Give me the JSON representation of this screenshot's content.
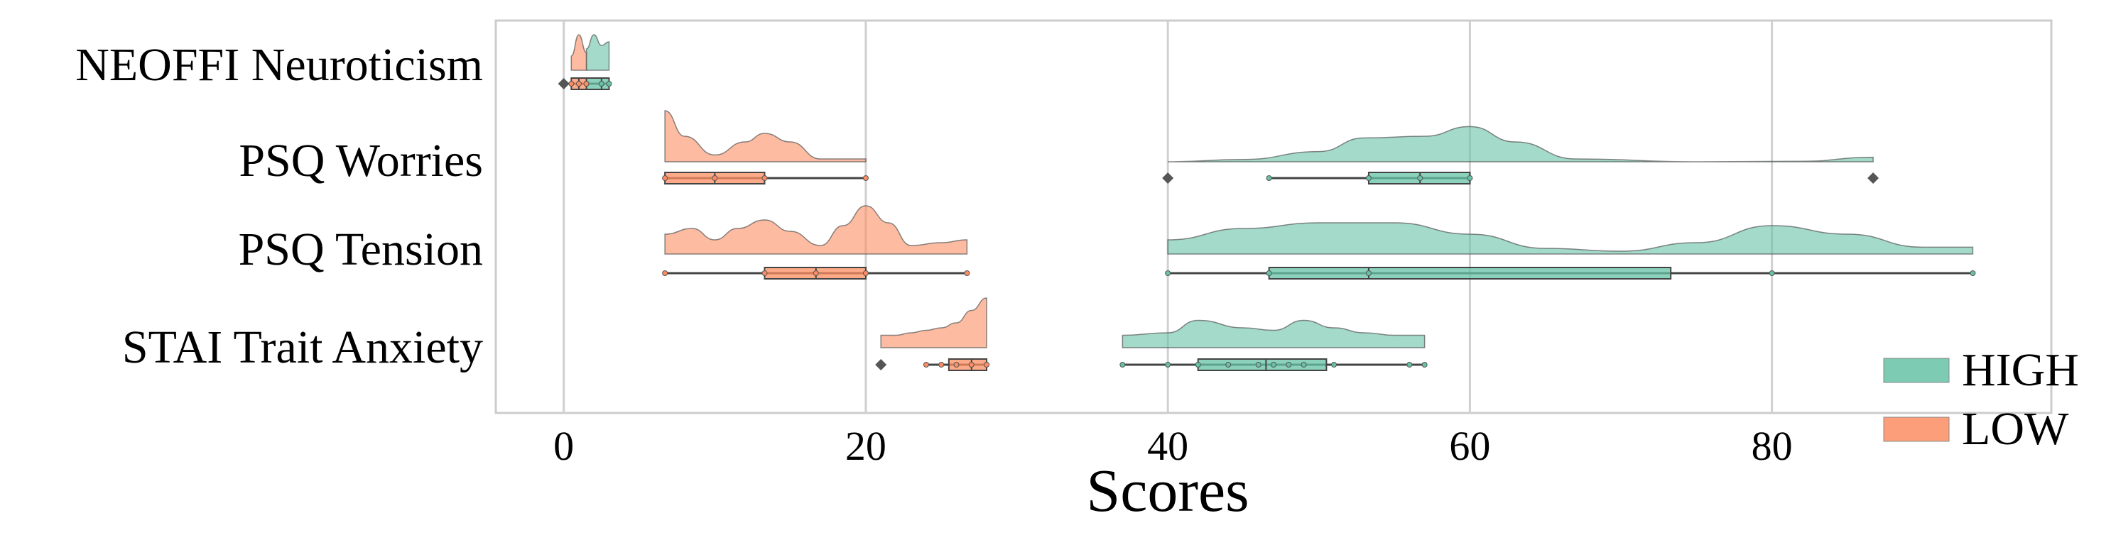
{
  "chart_data": {
    "type": "raincloud",
    "title": "",
    "xlabel": "Scores",
    "ylabel": "",
    "xlim": [
      -4.5,
      98.5
    ],
    "xticks": [
      0,
      20,
      40,
      60,
      80
    ],
    "grid": true,
    "orientation": "horizontal",
    "categories": [
      "NEOFFI Neuroticism",
      "PSQ Worries",
      "PSQ Tension",
      "STAI Trait Anxiety"
    ],
    "legend": {
      "position": "bottom-right",
      "entries": [
        "HIGH",
        "LOW"
      ]
    },
    "series": [
      {
        "name": "HIGH",
        "color": "#66c2a5",
        "groups": [
          {
            "category": "NEOFFI Neuroticism",
            "min": 1.5,
            "q1": 1.5,
            "median": 2.5,
            "q3": 3.0,
            "max": 3.0,
            "outliers": [],
            "kde": {
              "x": [
                1.5,
                2.0,
                2.5,
                3.0
              ],
              "density": [
                0.6,
                1.0,
                0.7,
                0.8
              ]
            },
            "points": [
              1.5,
              2.5,
              3.0
            ]
          },
          {
            "category": "PSQ Worries",
            "min": 46.7,
            "q1": 53.3,
            "median": 56.7,
            "q3": 60.0,
            "max": 60.0,
            "outliers": [
              40.0,
              86.7
            ],
            "kde": {
              "x": [
                40,
                45,
                50,
                53,
                57,
                60,
                63,
                67,
                75,
                82,
                86.7
              ],
              "density": [
                0.0,
                0.04,
                0.18,
                0.42,
                0.45,
                0.62,
                0.35,
                0.05,
                0.0,
                0.01,
                0.08
              ]
            },
            "points": [
              46.7,
              53.3,
              56.7,
              60.0
            ]
          },
          {
            "category": "PSQ Tension",
            "min": 40.0,
            "q1": 46.7,
            "median": 53.3,
            "q3": 73.3,
            "max": 93.3,
            "outliers": [],
            "kde": {
              "x": [
                40,
                45,
                50,
                55,
                60,
                65,
                70,
                75,
                80,
                85,
                90,
                93.3
              ],
              "density": [
                0.25,
                0.45,
                0.55,
                0.55,
                0.35,
                0.1,
                0.05,
                0.2,
                0.5,
                0.35,
                0.12,
                0.12
              ]
            },
            "points": [
              40.0,
              46.7,
              53.3,
              80.0,
              93.3
            ]
          },
          {
            "category": "STAI Trait Anxiety",
            "min": 37.0,
            "q1": 42.0,
            "median": 46.5,
            "q3": 50.5,
            "max": 57.0,
            "outliers": [],
            "kde": {
              "x": [
                37,
                40,
                42,
                45,
                47,
                49,
                51,
                53,
                55,
                57
              ],
              "density": [
                0.25,
                0.3,
                0.55,
                0.4,
                0.35,
                0.55,
                0.4,
                0.3,
                0.25,
                0.25
              ]
            },
            "points": [
              37,
              40,
              42,
              44,
              46,
              47,
              48,
              49,
              51,
              56,
              57
            ]
          }
        ]
      },
      {
        "name": "LOW",
        "color": "#fc8d62",
        "groups": [
          {
            "category": "NEOFFI Neuroticism",
            "min": 0.5,
            "q1": 0.5,
            "median": 1.0,
            "q3": 1.5,
            "max": 1.5,
            "outliers": [
              0.0
            ],
            "kde": {
              "x": [
                0.5,
                1.0,
                1.5
              ],
              "density": [
                0.4,
                1.0,
                0.5
              ]
            },
            "points": [
              0.5,
              1.0,
              1.5
            ]
          },
          {
            "category": "PSQ Worries",
            "min": 6.7,
            "q1": 6.7,
            "median": 10.0,
            "q3": 13.3,
            "max": 20.0,
            "outliers": [],
            "kde": {
              "x": [
                6.7,
                8,
                10,
                12,
                13.3,
                15,
                17,
                18.5,
                20
              ],
              "density": [
                0.9,
                0.45,
                0.12,
                0.35,
                0.5,
                0.35,
                0.05,
                0.05,
                0.05
              ]
            },
            "points": [
              6.7,
              10.0,
              13.3,
              20.0
            ]
          },
          {
            "category": "PSQ Tension",
            "min": 6.7,
            "q1": 13.3,
            "median": 16.7,
            "q3": 20.0,
            "max": 26.7,
            "outliers": [],
            "kde": {
              "x": [
                6.7,
                8.5,
                10,
                11.5,
                13.3,
                15,
                17,
                18.5,
                20,
                21.5,
                23,
                25,
                26.7
              ],
              "density": [
                0.35,
                0.45,
                0.25,
                0.45,
                0.6,
                0.4,
                0.15,
                0.5,
                0.85,
                0.55,
                0.15,
                0.2,
                0.25
              ]
            },
            "points": [
              6.7,
              13.3,
              16.7,
              20.0,
              26.7
            ]
          },
          {
            "category": "STAI Trait Anxiety",
            "min": 24.0,
            "q1": 25.5,
            "median": 27.0,
            "q3": 28.0,
            "max": 28.0,
            "outliers": [
              21.0
            ],
            "kde": {
              "x": [
                21,
                22,
                23,
                24,
                25,
                26,
                27,
                28
              ],
              "density": [
                0.25,
                0.25,
                0.3,
                0.35,
                0.4,
                0.5,
                0.75,
                1.0
              ]
            },
            "points": [
              24,
              25,
              26,
              27,
              28
            ]
          }
        ]
      }
    ]
  }
}
